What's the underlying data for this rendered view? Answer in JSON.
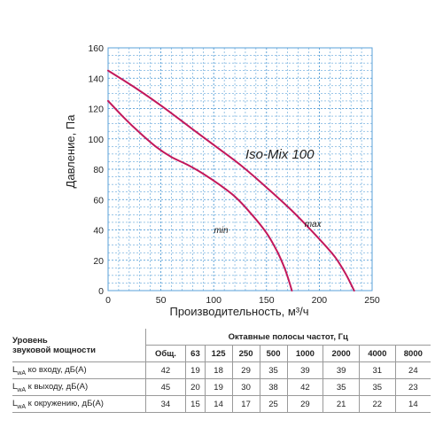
{
  "chart_data": {
    "type": "line",
    "model_label": "Iso-Mix 100",
    "xlabel": "Производительность, м³/ч",
    "ylabel": "Давление, Па",
    "xlim": [
      0,
      250
    ],
    "ylim": [
      0,
      160
    ],
    "xticks": [
      0,
      50,
      100,
      150,
      200,
      250
    ],
    "yticks": [
      0,
      20,
      40,
      60,
      80,
      100,
      120,
      140,
      160
    ],
    "grid": true,
    "colors": {
      "curve": "#c2185b",
      "grid": "#3a8fd0",
      "border": "#5aa0d8"
    },
    "series": [
      {
        "name": "max",
        "points": [
          [
            0,
            145
          ],
          [
            25,
            134
          ],
          [
            50,
            122
          ],
          [
            75,
            109
          ],
          [
            100,
            96
          ],
          [
            125,
            83
          ],
          [
            150,
            68
          ],
          [
            175,
            52
          ],
          [
            200,
            34
          ],
          [
            215,
            22
          ],
          [
            225,
            11
          ],
          [
            233,
            0
          ]
        ]
      },
      {
        "name": "min",
        "points": [
          [
            0,
            125
          ],
          [
            15,
            114
          ],
          [
            30,
            104
          ],
          [
            45,
            95
          ],
          [
            60,
            88
          ],
          [
            75,
            83
          ],
          [
            90,
            77
          ],
          [
            105,
            70
          ],
          [
            120,
            62
          ],
          [
            135,
            51
          ],
          [
            150,
            38
          ],
          [
            160,
            26
          ],
          [
            167,
            15
          ],
          [
            171,
            7
          ],
          [
            174,
            0
          ]
        ]
      }
    ]
  },
  "noise_table": {
    "header_title_line1": "Уровень",
    "header_title_line2": "звуковой мощности",
    "bands_title": "Октавные полосы частот, Гц",
    "columns": [
      "Общ.",
      "63",
      "125",
      "250",
      "500",
      "1000",
      "2000",
      "4000",
      "8000"
    ],
    "rows": [
      {
        "prefix": "L",
        "sub": "wA",
        "suffix": " ко входу, дБ(А)",
        "values": [
          "42",
          "19",
          "18",
          "29",
          "35",
          "39",
          "39",
          "31",
          "24"
        ]
      },
      {
        "prefix": "L",
        "sub": "wA",
        "suffix": " к выходу, дБ(А)",
        "values": [
          "45",
          "20",
          "19",
          "30",
          "38",
          "42",
          "35",
          "35",
          "23"
        ]
      },
      {
        "prefix": "L",
        "sub": "wA",
        "suffix": " к окружению, дБ(А)",
        "values": [
          "34",
          "15",
          "14",
          "17",
          "25",
          "29",
          "21",
          "22",
          "14"
        ]
      }
    ]
  }
}
